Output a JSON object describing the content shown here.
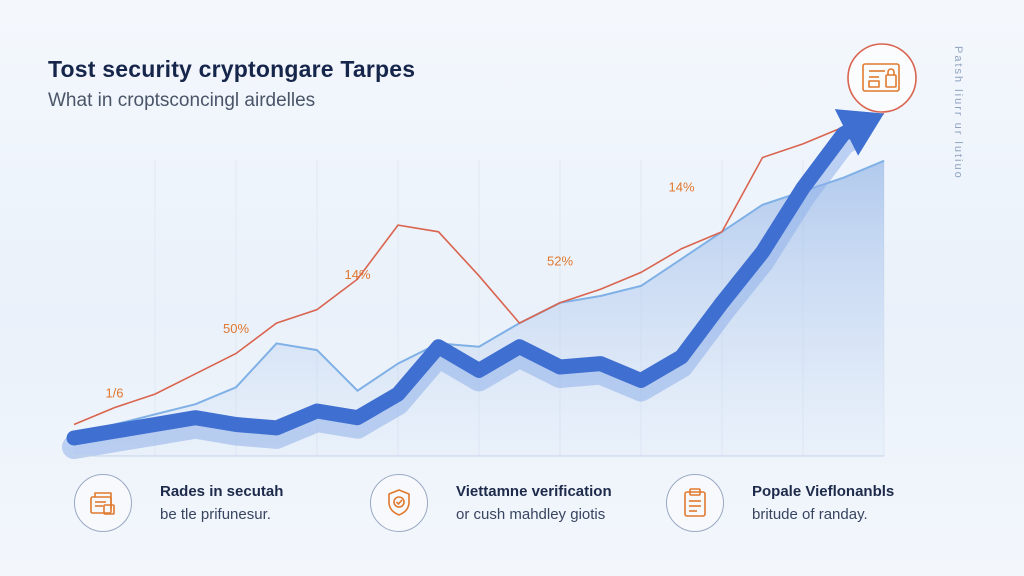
{
  "title": "Tost security cryptongare Tarpes",
  "subtitle": "What in croptsconcingl airdelles",
  "side_label": "Patsh liurr ur lutiuo",
  "colors": {
    "blue_trend": "#3f6fd1",
    "light_blue_line": "#7fb0e6",
    "red_line": "#d9644f",
    "label_orange": "#e0782e",
    "icon_orange": "#e07a2f",
    "icon_stroke": "#9aa9c2"
  },
  "chart_data": {
    "type": "line",
    "title": "Tost security cryptongare Tarpes",
    "x": [
      0,
      1,
      2,
      3,
      4,
      5,
      6,
      7,
      8,
      9,
      10,
      11,
      12,
      13,
      14,
      15,
      16,
      17,
      18,
      19,
      20
    ],
    "ylim": [
      0,
      100
    ],
    "grid": true,
    "series": [
      {
        "name": "red-line",
        "values": [
          4,
          9,
          13,
          19,
          25,
          34,
          38,
          47,
          63,
          61,
          48,
          34,
          40,
          44,
          49,
          56,
          61,
          83,
          87,
          92,
          96
        ]
      },
      {
        "name": "light-blue-line",
        "values": [
          0,
          4,
          7,
          10,
          15,
          28,
          26,
          14,
          22,
          28,
          27,
          34,
          40,
          42,
          45,
          53,
          61,
          69,
          73,
          77,
          82
        ]
      },
      {
        "name": "blue-trend-arrow",
        "values": [
          0,
          2,
          4,
          6,
          4,
          3,
          8,
          6,
          13,
          27,
          20,
          27,
          21,
          22,
          17,
          24,
          40,
          55,
          74,
          90,
          96
        ]
      }
    ],
    "annotations": [
      {
        "text": "1/6",
        "x": 1,
        "y": 12
      },
      {
        "text": "50%",
        "x": 4,
        "y": 31
      },
      {
        "text": "14%",
        "x": 7,
        "y": 47
      },
      {
        "text": "52%",
        "x": 12,
        "y": 51
      },
      {
        "text": "14%",
        "x": 15,
        "y": 73
      }
    ]
  },
  "features": [
    {
      "icon": "document-stack-icon",
      "title": "Rades in secutah",
      "desc": "be tle prifunesur."
    },
    {
      "icon": "verification-badge-icon",
      "title": "Viettamne verification",
      "desc": "or cush mahdley giotis"
    },
    {
      "icon": "clipboard-icon",
      "title": "Popale Vieflonanbls",
      "desc": "britude of randay."
    }
  ],
  "top_badge": {
    "icon": "secure-document-icon"
  }
}
